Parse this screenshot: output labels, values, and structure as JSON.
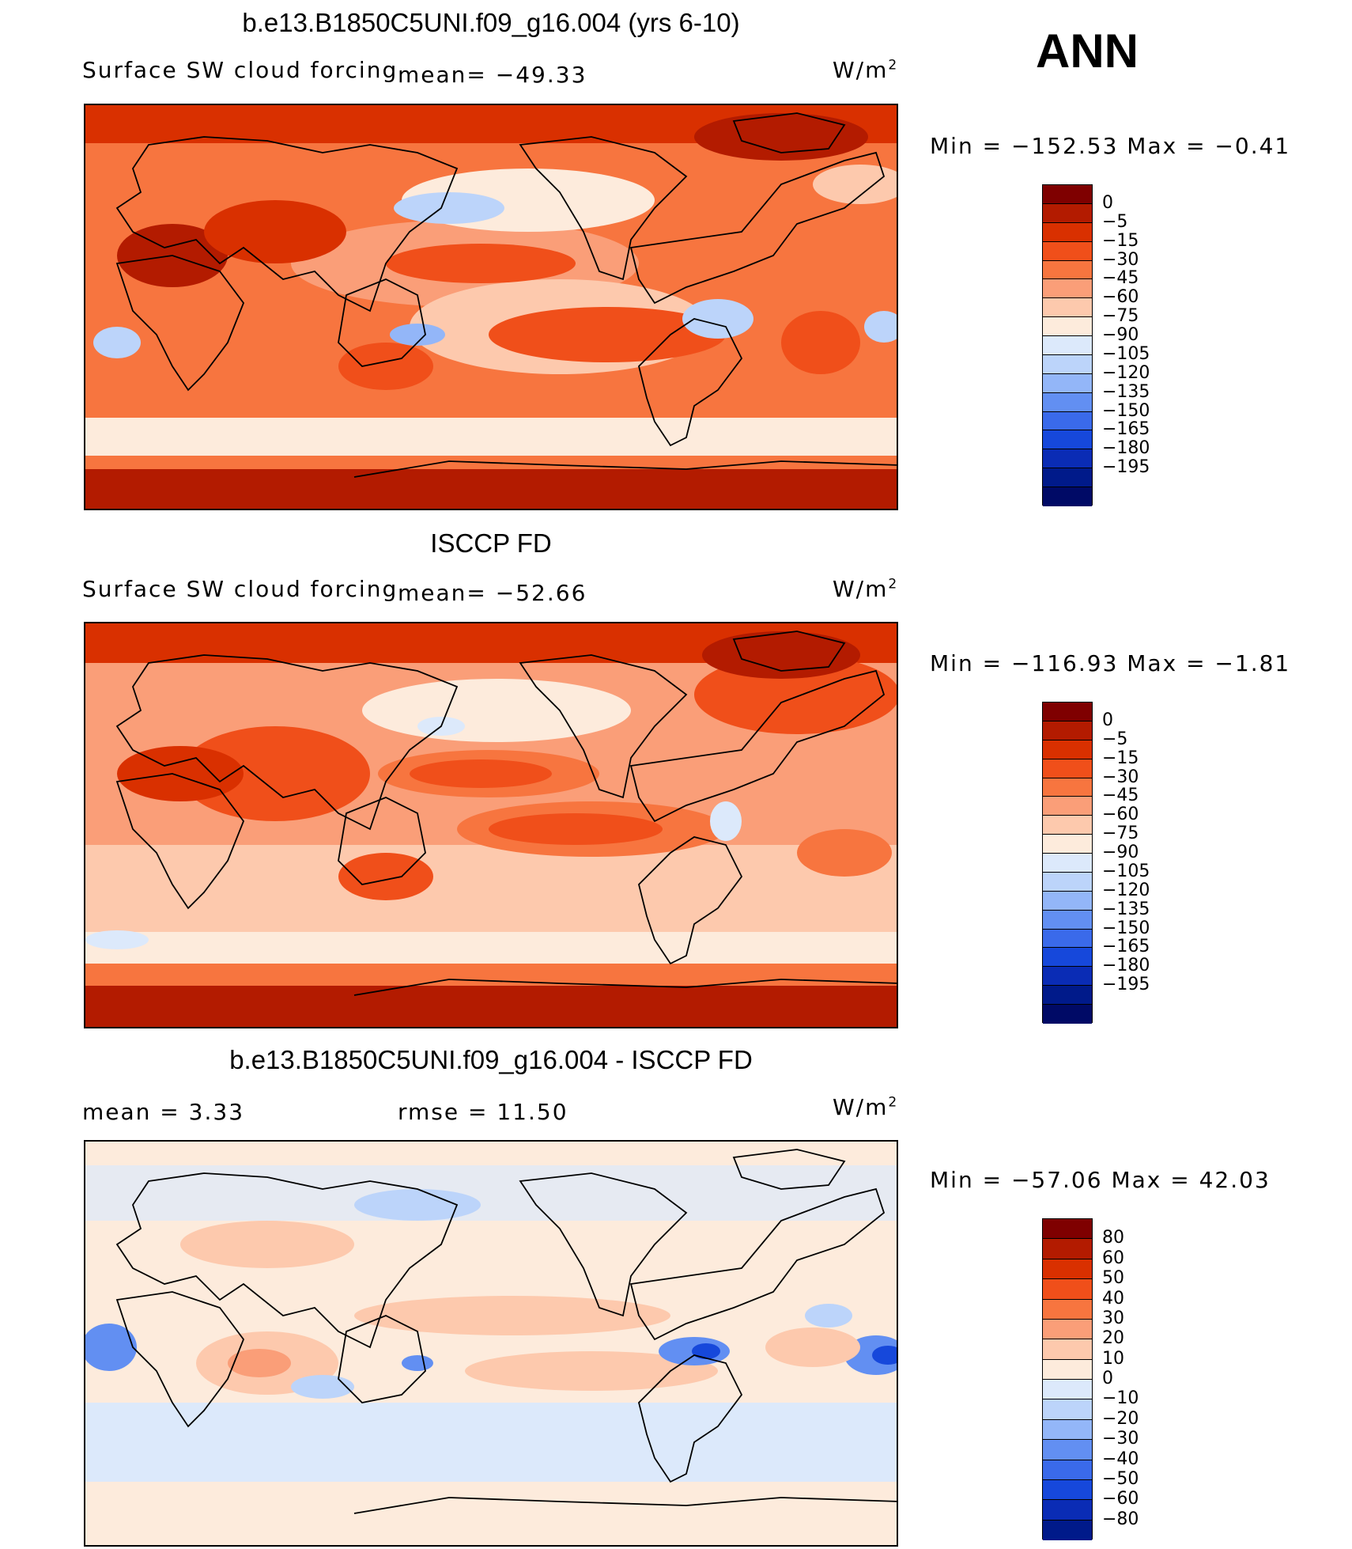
{
  "season": "ANN",
  "units_base": "W/m",
  "units_exp": "2",
  "colors": {
    "forcing": [
      "#7f0000",
      "#b31b00",
      "#d93000",
      "#f04f1a",
      "#f7753f",
      "#fa9e78",
      "#fdc9ad",
      "#fdebdc",
      "#dce9fb",
      "#bcd4fa",
      "#93b6f8",
      "#628ff2",
      "#3a6aea",
      "#1648db",
      "#0a2cb5",
      "#001a8a",
      "#000a66"
    ],
    "diff": [
      "#7f0000",
      "#b31b00",
      "#d93000",
      "#f04f1a",
      "#f7753f",
      "#fa9e78",
      "#fdc9ad",
      "#fdebdc",
      "#dce9fb",
      "#bcd4fa",
      "#93b6f8",
      "#628ff2",
      "#3a6aea",
      "#1648db",
      "#0a2cb5",
      "#001a8a"
    ]
  },
  "chart_data": [
    {
      "type": "heatmap",
      "title": "b.e13.B1850C5UNI.f09_g16.004 (yrs 6-10)",
      "label_left": "Surface SW cloud forcing",
      "label_mid": "mean=  −49.33",
      "mean": -49.33,
      "stats": "Min  =  −152.53  Max  =    −0.41",
      "min": -152.53,
      "max": -0.41,
      "levels": [
        "0",
        "−5",
        "−15",
        "−30",
        "−45",
        "−60",
        "−75",
        "−90",
        "−105",
        "−120",
        "−135",
        "−150",
        "−165",
        "−180",
        "−195"
      ]
    },
    {
      "type": "heatmap",
      "title": "ISCCP FD",
      "label_left": "Surface SW cloud forcing",
      "label_mid": "mean=  −52.66",
      "mean": -52.66,
      "stats": "Min  =  −116.93  Max  =    −1.81",
      "min": -116.93,
      "max": -1.81,
      "levels": [
        "0",
        "−5",
        "−15",
        "−30",
        "−45",
        "−60",
        "−75",
        "−90",
        "−105",
        "−120",
        "−135",
        "−150",
        "−165",
        "−180",
        "−195"
      ]
    },
    {
      "type": "heatmap",
      "title": "b.e13.B1850C5UNI.f09_g16.004 - ISCCP FD",
      "label_left": "mean  =      3.33",
      "label_mid": "rmse  =     11.50",
      "mean": 3.33,
      "rmse": 11.5,
      "stats": "Min  =  −57.06  Max  =    42.03",
      "min": -57.06,
      "max": 42.03,
      "levels": [
        "80",
        "60",
        "50",
        "40",
        "30",
        "20",
        "10",
        "0",
        "−10",
        "−20",
        "−30",
        "−40",
        "−50",
        "−60",
        "−80"
      ]
    }
  ]
}
